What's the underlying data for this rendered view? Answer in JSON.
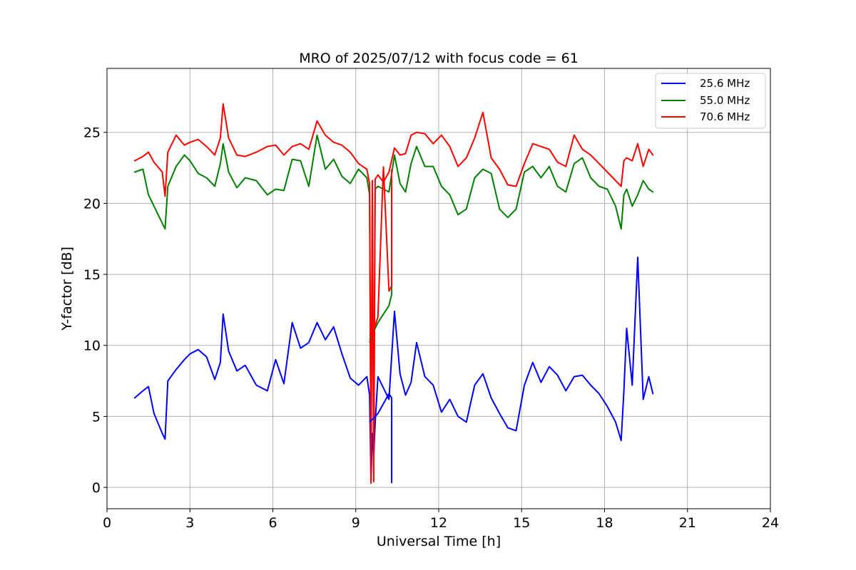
{
  "chart_data": {
    "type": "line",
    "title": "MRO of 2025/07/12 with focus code = 61",
    "xlabel": "Universal Time [h]",
    "ylabel": "Y-factor [dB]",
    "xlim": [
      0,
      24
    ],
    "ylim": [
      -1.5,
      29.5
    ],
    "xticks": [
      0,
      3,
      6,
      9,
      12,
      15,
      18,
      21,
      24
    ],
    "yticks": [
      0,
      5,
      10,
      15,
      20,
      25
    ],
    "grid": true,
    "legend": "top-right",
    "series": [
      {
        "name": "25.6 MHz",
        "color": "#0000ff",
        "x": [
          1.0,
          1.3,
          1.5,
          1.7,
          2.0,
          2.1,
          2.2,
          2.5,
          2.8,
          3.0,
          3.3,
          3.6,
          3.9,
          4.1,
          4.2,
          4.4,
          4.7,
          5.0,
          5.4,
          5.8,
          6.1,
          6.4,
          6.7,
          7.0,
          7.3,
          7.6,
          7.9,
          8.2,
          8.5,
          8.8,
          9.1,
          9.4,
          9.5,
          9.55,
          9.6,
          9.65,
          9.7,
          9.8,
          10.0,
          10.2,
          10.4,
          10.6,
          10.8,
          11.0,
          11.2,
          11.5,
          11.8,
          12.1,
          12.4,
          12.7,
          13.0,
          13.3,
          13.6,
          13.9,
          14.2,
          14.5,
          14.8,
          15.1,
          15.4,
          15.7,
          16.0,
          16.3,
          16.6,
          16.9,
          17.2,
          17.5,
          17.8,
          18.1,
          18.4,
          18.6,
          18.7,
          18.8,
          19.0,
          19.2,
          19.4,
          19.6,
          19.75
        ],
        "y": [
          6.3,
          6.8,
          7.1,
          5.2,
          3.8,
          3.4,
          7.5,
          8.3,
          9.0,
          9.4,
          9.7,
          9.2,
          7.6,
          8.8,
          12.2,
          9.6,
          8.2,
          8.6,
          7.2,
          6.8,
          9.0,
          7.3,
          11.6,
          9.8,
          10.2,
          11.6,
          10.4,
          11.3,
          9.4,
          7.7,
          7.2,
          7.8,
          6.5,
          0.5,
          3.8,
          2.2,
          4.5,
          7.8,
          7.0,
          6.2,
          12.4,
          8.0,
          6.5,
          7.4,
          10.2,
          7.8,
          7.2,
          5.3,
          6.2,
          5.0,
          4.6,
          7.2,
          8.0,
          6.3,
          5.2,
          4.2,
          4.0,
          7.2,
          8.8,
          7.4,
          8.5,
          7.9,
          6.8,
          7.8,
          7.9,
          7.2,
          6.6,
          5.7,
          4.6,
          3.3,
          6.8,
          11.2,
          7.2,
          16.2,
          6.2,
          7.8,
          6.6
        ]
      },
      {
        "name": "55.0 MHz",
        "color": "#008000",
        "x": [
          1.0,
          1.3,
          1.5,
          1.7,
          2.0,
          2.1,
          2.2,
          2.5,
          2.8,
          3.0,
          3.3,
          3.6,
          3.9,
          4.1,
          4.2,
          4.4,
          4.7,
          5.0,
          5.4,
          5.8,
          6.1,
          6.4,
          6.7,
          7.0,
          7.3,
          7.6,
          7.9,
          8.2,
          8.5,
          8.8,
          9.1,
          9.4,
          9.5,
          9.55,
          9.6,
          9.65,
          9.7,
          9.8,
          10.0,
          10.2,
          10.4,
          10.6,
          10.8,
          11.0,
          11.2,
          11.5,
          11.8,
          12.1,
          12.4,
          12.7,
          13.0,
          13.3,
          13.6,
          13.9,
          14.2,
          14.5,
          14.8,
          15.1,
          15.4,
          15.7,
          16.0,
          16.3,
          16.6,
          16.9,
          17.2,
          17.5,
          17.8,
          18.1,
          18.4,
          18.6,
          18.7,
          18.8,
          19.0,
          19.2,
          19.4,
          19.6,
          19.75
        ],
        "y": [
          22.2,
          22.4,
          20.6,
          19.8,
          18.6,
          18.2,
          21.2,
          22.6,
          23.4,
          23.0,
          22.1,
          21.8,
          21.2,
          22.8,
          24.2,
          22.2,
          21.1,
          21.8,
          21.6,
          20.6,
          21.0,
          20.9,
          23.1,
          23.0,
          21.2,
          24.8,
          22.4,
          23.1,
          21.9,
          21.4,
          22.4,
          21.8,
          20.6,
          1.5,
          20.0,
          1.0,
          21.0,
          21.2,
          21.0,
          20.8,
          23.4,
          21.4,
          20.8,
          22.8,
          24.0,
          22.6,
          22.6,
          21.2,
          20.6,
          19.2,
          19.6,
          21.8,
          22.4,
          22.1,
          19.6,
          19.0,
          19.6,
          22.2,
          22.6,
          21.8,
          22.6,
          21.2,
          20.8,
          22.8,
          23.2,
          21.8,
          21.2,
          21.0,
          19.8,
          18.2,
          20.6,
          21.0,
          19.8,
          20.6,
          21.6,
          21.0,
          20.8
        ]
      },
      {
        "name": "70.6 MHz",
        "color": "#ff0000",
        "x": [
          1.0,
          1.3,
          1.5,
          1.7,
          2.0,
          2.1,
          2.2,
          2.5,
          2.8,
          3.0,
          3.3,
          3.6,
          3.9,
          4.1,
          4.2,
          4.4,
          4.7,
          5.0,
          5.4,
          5.8,
          6.1,
          6.4,
          6.7,
          7.0,
          7.3,
          7.6,
          7.9,
          8.2,
          8.5,
          8.8,
          9.1,
          9.4,
          9.5,
          9.55,
          9.6,
          9.65,
          9.7,
          9.8,
          10.0,
          10.2,
          10.4,
          10.6,
          10.8,
          11.0,
          11.2,
          11.5,
          11.8,
          12.1,
          12.4,
          12.7,
          13.0,
          13.3,
          13.6,
          13.9,
          14.2,
          14.5,
          14.8,
          15.1,
          15.4,
          15.7,
          16.0,
          16.3,
          16.6,
          16.9,
          17.2,
          17.5,
          17.8,
          18.1,
          18.4,
          18.6,
          18.7,
          18.8,
          19.0,
          19.2,
          19.4,
          19.6,
          19.75
        ],
        "y": [
          23.0,
          23.3,
          23.6,
          22.9,
          22.2,
          20.5,
          23.6,
          24.8,
          24.1,
          24.3,
          24.5,
          24.0,
          23.4,
          24.6,
          27.0,
          24.6,
          23.4,
          23.3,
          23.6,
          24.0,
          24.1,
          23.4,
          24.0,
          24.2,
          23.8,
          25.8,
          24.8,
          24.3,
          24.1,
          23.6,
          22.8,
          22.4,
          21.4,
          0.3,
          21.6,
          0.4,
          21.7,
          22.0,
          21.5,
          22.2,
          23.9,
          23.4,
          23.5,
          24.8,
          25.0,
          24.9,
          24.2,
          24.8,
          24.0,
          22.6,
          23.2,
          24.6,
          26.4,
          23.2,
          22.4,
          21.3,
          21.2,
          22.8,
          24.2,
          24.0,
          23.8,
          22.9,
          22.6,
          24.8,
          23.8,
          23.4,
          22.8,
          22.2,
          21.6,
          21.2,
          23.0,
          23.2,
          23.0,
          24.2,
          22.6,
          23.8,
          23.4
        ]
      }
    ],
    "transitions": [
      {
        "series": "25.6 MHz",
        "x": [
          9.5,
          9.8,
          10.2,
          10.3,
          10.3
        ],
        "y": [
          4.6,
          5.2,
          6.6,
          6.3,
          0.3
        ]
      },
      {
        "series": "55.0 MHz",
        "x": [
          9.5,
          9.8,
          10.2,
          10.3,
          10.3
        ],
        "y": [
          10.4,
          11.6,
          12.8,
          13.6,
          21.2
        ]
      },
      {
        "series": "70.6 MHz",
        "x": [
          9.5,
          9.8,
          10.0,
          10.2,
          10.3,
          10.3
        ],
        "y": [
          10.2,
          12.0,
          22.6,
          13.8,
          14.2,
          22.4
        ]
      }
    ]
  }
}
